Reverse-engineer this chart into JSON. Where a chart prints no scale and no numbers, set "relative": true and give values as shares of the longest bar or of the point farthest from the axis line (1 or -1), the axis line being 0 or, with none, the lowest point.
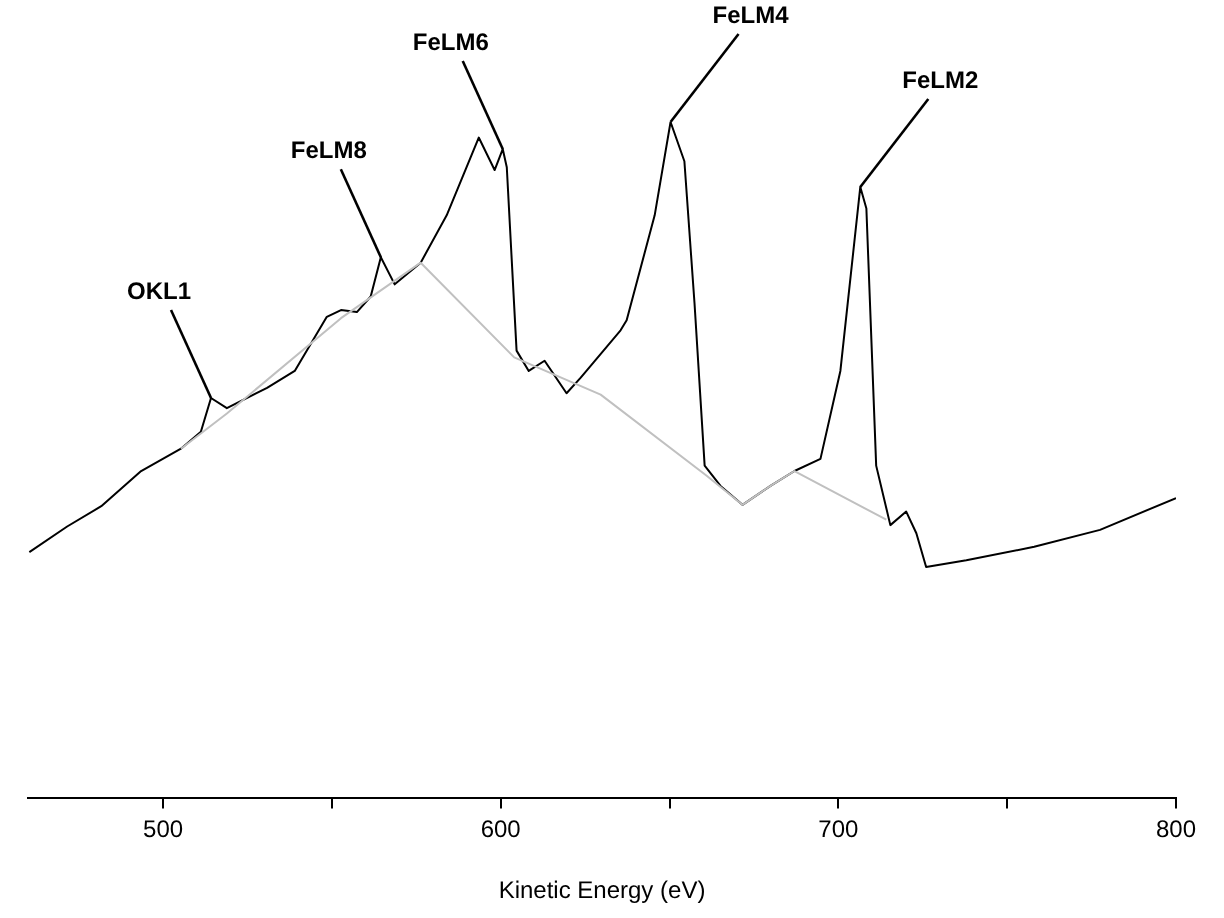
{
  "chart_data": {
    "type": "line",
    "relative": true,
    "xlabel": "Kinetic Energy (eV)",
    "xlim": [
      460,
      800
    ],
    "xticks": [
      500,
      {
        "value": 550,
        "label": null
      },
      600,
      {
        "value": 650,
        "label": null
      },
      700,
      {
        "value": 750,
        "label": null
      },
      800
    ],
    "tick_labels": "x",
    "grid": false,
    "legend": false,
    "marker": "none",
    "line_style": "solid",
    "series": [
      {
        "color": "#c0c0c0",
        "x": [
          505.3,
          518.9,
          552.7,
          576.3,
          604.0,
          629.6,
          661.0,
          671.6,
          679.9,
          687.0,
          714.2
        ],
        "values": [
          0.517,
          0.569,
          0.71,
          0.792,
          0.652,
          0.597,
          0.477,
          0.434,
          0.462,
          0.484,
          0.412
        ]
      },
      {
        "color": "#000000",
        "x": [
          460.4,
          471.6,
          481.7,
          493.5,
          505.3,
          511.2,
          514.2,
          518.9,
          530.8,
          539.0,
          548.5,
          552.7,
          557.4,
          561.5,
          564.5,
          568.6,
          576.3,
          584.0,
          593.5,
          598.2,
          600.6,
          601.8,
          604.7,
          608.3,
          613.0,
          619.5,
          623.7,
          635.5,
          637.3,
          645.6,
          650.3,
          654.4,
          657.4,
          660.4,
          665.1,
          671.6,
          679.9,
          687.0,
          694.7,
          700.6,
          706.5,
          708.3,
          711.2,
          715.4,
          720.1,
          723.1,
          726.0,
          737.9,
          758.0,
          777.5,
          800.0
        ],
        "values": [
          0.364,
          0.402,
          0.432,
          0.484,
          0.517,
          0.542,
          0.592,
          0.577,
          0.607,
          0.632,
          0.712,
          0.722,
          0.719,
          0.742,
          0.8,
          0.76,
          0.792,
          0.862,
          0.977,
          0.929,
          0.96,
          0.933,
          0.662,
          0.632,
          0.647,
          0.599,
          0.622,
          0.692,
          0.707,
          0.862,
          1.0,
          0.942,
          0.732,
          0.492,
          0.462,
          0.434,
          0.462,
          0.484,
          0.502,
          0.632,
          0.904,
          0.872,
          0.492,
          0.404,
          0.424,
          0.392,
          0.342,
          0.352,
          0.372,
          0.397,
          0.444
        ]
      }
    ],
    "annotations": [
      {
        "text": "OKL1",
        "x": 514.2,
        "y": 0.592
      },
      {
        "text": "FeLM8",
        "x": 564.5,
        "y": 0.8
      },
      {
        "text": "FeLM6",
        "x": 600.6,
        "y": 0.96
      },
      {
        "text": "FeLM4",
        "x": 650.3,
        "y": 1.0
      },
      {
        "text": "FeLM2",
        "x": 706.5,
        "y": 0.904
      }
    ]
  }
}
